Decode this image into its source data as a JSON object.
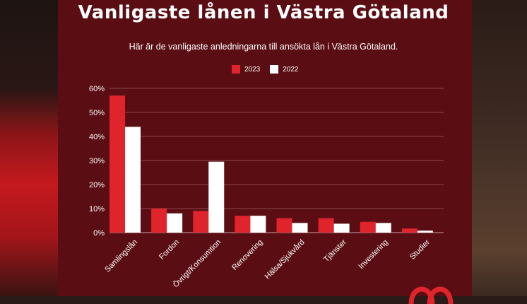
{
  "title": "Vanligaste lånen i Västra Götaland",
  "subtitle": "Här är de vanligaste anledningarna till ansökta lån i Västra Götaland.",
  "colors": {
    "panel": "#5a0e14",
    "series_2023": "#e0242c",
    "series_2022": "#ffffff",
    "grid": "#8a4a4e",
    "axis": "#c9a3a5"
  },
  "chart_data": {
    "type": "bar",
    "categories": [
      "Samlingslån",
      "Fordon",
      "Övrigt/Konsumtion",
      "Renovering",
      "Hälsa/Sjukvård",
      "Tjänster",
      "Investering",
      "Studier"
    ],
    "series": [
      {
        "name": "2023",
        "values": [
          57,
          10,
          9,
          7,
          6,
          6,
          4.5,
          1.7
        ]
      },
      {
        "name": "2022",
        "values": [
          44,
          8,
          29.5,
          7,
          4,
          3.7,
          4,
          0.8
        ]
      }
    ],
    "ylim": [
      0,
      60
    ],
    "yticks": [
      "0%",
      "10%",
      "20%",
      "30%",
      "40%",
      "50%",
      "60%"
    ],
    "grid": true,
    "legend": "top-center"
  }
}
